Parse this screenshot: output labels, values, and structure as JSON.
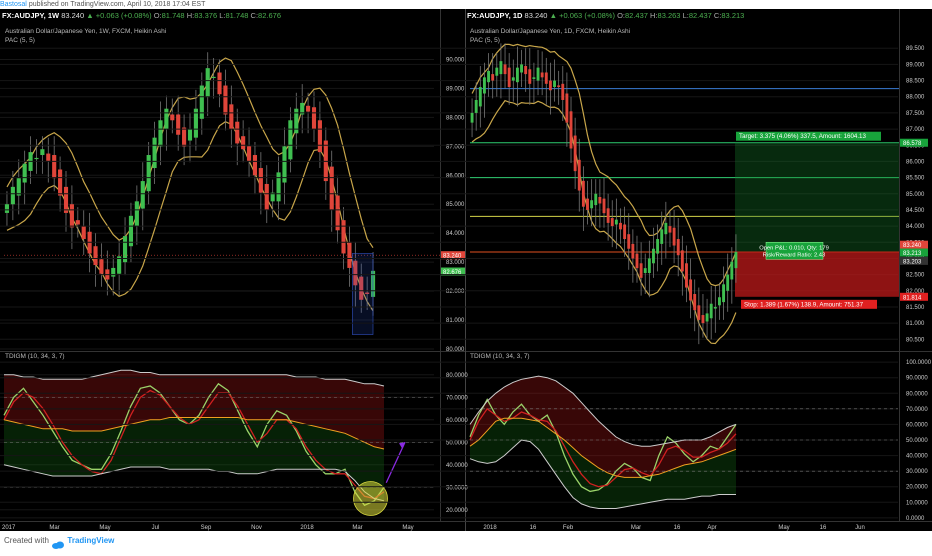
{
  "topbar": {
    "author": "Bastosal",
    "text": "published on TradingView.com, April 10, 2018 17:04 EST"
  },
  "footer": {
    "created": "Created with",
    "brand": "TradingView"
  },
  "left": {
    "header": {
      "symbol": "FX:AUDJPY, 1W",
      "last": "83.240",
      "change": "▲ +0.063 (+0.08%)",
      "o_label": "O:",
      "o": "81.748",
      "h_label": "H:",
      "h": "83.376",
      "l_label": "L:",
      "l": "81.748",
      "c_label": "C:",
      "c": "82.676"
    },
    "title": "Australian Dollar/Japanese Yen, 1W, FXCM, Heikin Ashi",
    "pac_label": "PAC (5, 5)",
    "osc_label": "TDIGM (10, 34, 3, 7)"
  },
  "right": {
    "header": {
      "symbol": "FX:AUDJPY, 1D",
      "last": "83.240",
      "change": "▲ +0.063 (+0.08%)",
      "o_label": "O:",
      "o": "82.437",
      "h_label": "H:",
      "h": "83.263",
      "l_label": "L:",
      "l": "82.437",
      "c_label": "C:",
      "c": "83.213"
    },
    "title": "Australian Dollar/Japanese Yen, 1D, FXCM, Heikin Ashi",
    "pac_label": "PAC (5, 5)",
    "osc_label": "TDIGM (10, 34, 3, 7)",
    "target_text": "Target: 3.375 (4.06%) 337.5, Amount: 1604.13",
    "stop_text": "Stop: 1.389 (1.67%) 138.9, Amount: 751.37",
    "pnl_line1": "Open P&L: 0.010, Qty: 179",
    "pnl_line2": "Risk/Reward Ratio: 2.43"
  },
  "chart_data": [
    {
      "type": "candlestick",
      "panel": "left-price",
      "x_ticks": [
        "2017",
        "Mar",
        "May",
        "Jul",
        "Sep",
        "Nov",
        "2018",
        "Mar",
        "May"
      ],
      "y_ticks": [
        "90.000",
        "89.000",
        "88.000",
        "87.000",
        "86.000",
        "85.000",
        "84.000",
        "83.000",
        "82.000",
        "81.000",
        "80.000"
      ],
      "ylim": [
        80.0,
        90.5
      ],
      "price_labels": {
        "last": "83.240",
        "close": "82.676"
      },
      "series_close": [
        85.0,
        85.6,
        85.9,
        86.4,
        86.8,
        86.6,
        86.9,
        86.5,
        85.9,
        85.3,
        84.7,
        84.2,
        84.3,
        83.8,
        83.3,
        82.9,
        82.6,
        82.4,
        82.8,
        83.2,
        83.9,
        84.6,
        85.1,
        85.8,
        86.7,
        87.3,
        87.9,
        88.3,
        87.9,
        87.4,
        87.0,
        87.6,
        88.3,
        89.1,
        89.7,
        89.4,
        88.8,
        88.1,
        87.6,
        87.1,
        86.9,
        86.5,
        86.0,
        85.4,
        84.8,
        85.4,
        86.1,
        87.0,
        87.9,
        88.3,
        88.5,
        88.2,
        87.6,
        86.8,
        85.8,
        84.8,
        84.1,
        83.3,
        82.8,
        82.2,
        81.7,
        81.9,
        82.7
      ]
    },
    {
      "type": "line",
      "panel": "left-oscillator",
      "y_ticks": [
        "80.0000",
        "70.0000",
        "60.0000",
        "50.0000",
        "40.0000",
        "30.0000",
        "20.0000"
      ],
      "ylim": [
        15,
        87
      ],
      "series": [
        {
          "values": [
            62,
            70,
            74,
            68,
            62,
            55,
            48,
            42,
            40,
            38,
            38,
            45,
            55,
            66,
            74,
            75,
            72,
            66,
            60,
            58,
            62,
            70,
            76,
            73,
            64,
            55,
            48,
            58,
            64,
            62,
            55,
            46,
            40,
            36,
            36,
            38,
            28,
            22,
            24,
            30
          ]
        },
        {
          "values": [
            60,
            68,
            72,
            70,
            65,
            58,
            50,
            44,
            40,
            37,
            36,
            42,
            52,
            62,
            70,
            73,
            71,
            66,
            61,
            58,
            60,
            66,
            72,
            72,
            66,
            58,
            50,
            54,
            60,
            60,
            56,
            48,
            42,
            38,
            36,
            36,
            31,
            26,
            25,
            28
          ]
        },
        {
          "values": [
            60,
            59,
            58,
            57,
            56,
            56,
            56,
            55,
            55,
            55,
            55,
            56,
            57,
            58,
            59,
            60,
            60,
            61,
            61,
            61,
            61,
            61,
            61,
            61,
            61,
            60,
            60,
            60,
            60,
            60,
            59,
            58,
            57,
            56,
            55,
            54,
            52,
            50,
            48,
            47
          ]
        },
        {
          "values": [
            80,
            80,
            79,
            79,
            78,
            78,
            78,
            78,
            78,
            79,
            80,
            81,
            82,
            82,
            81,
            81,
            80,
            80,
            80,
            80,
            80,
            80,
            80,
            80,
            80,
            80,
            80,
            80,
            80,
            80,
            79,
            79,
            79,
            78,
            78,
            78,
            77,
            76,
            76,
            75
          ]
        },
        {
          "values": [
            40,
            39,
            38,
            37,
            36,
            35,
            35,
            35,
            35,
            35,
            36,
            37,
            38,
            39,
            39,
            39,
            39,
            38,
            38,
            38,
            38,
            38,
            37,
            37,
            36,
            36,
            36,
            37,
            38,
            38,
            38,
            38,
            38,
            38,
            38,
            37,
            33,
            28,
            25,
            24
          ]
        }
      ]
    },
    {
      "type": "candlestick",
      "panel": "right-price",
      "x_ticks": [
        "2018",
        "16",
        "Feb",
        "Mar",
        "16",
        "Apr",
        "May",
        "16",
        "Jun"
      ],
      "y_ticks": [
        "89.500",
        "89.000",
        "88.500",
        "88.000",
        "87.500",
        "87.000",
        "86.500",
        "86.000",
        "85.500",
        "85.000",
        "84.500",
        "84.000",
        "83.500",
        "83.000",
        "82.500",
        "82.000",
        "81.500",
        "81.000",
        "80.500"
      ],
      "ylim": [
        80.2,
        89.6
      ],
      "price_labels": {
        "target": "86.578",
        "last": "83.240",
        "entry": "83.213",
        "close": "83.203",
        "stop": "81.814"
      },
      "series_close": [
        87.5,
        87.9,
        88.3,
        88.6,
        88.8,
        88.5,
        88.9,
        89.1,
        88.7,
        88.3,
        88.6,
        88.9,
        89.0,
        88.7,
        88.4,
        88.6,
        88.9,
        88.6,
        88.4,
        88.2,
        88.5,
        88.3,
        87.9,
        87.2,
        86.4,
        85.7,
        85.1,
        84.6,
        84.5,
        84.8,
        85.0,
        84.7,
        84.4,
        84.1,
        84.0,
        84.2,
        83.9,
        83.6,
        83.3,
        83.0,
        82.7,
        82.4,
        82.7,
        83.0,
        83.3,
        83.6,
        83.9,
        84.1,
        83.8,
        83.4,
        83.1,
        82.6,
        82.1,
        81.7,
        81.4,
        81.1,
        81.0,
        81.3,
        81.6,
        81.5,
        81.8,
        82.2,
        82.5,
        82.9,
        83.2
      ]
    },
    {
      "type": "line",
      "panel": "right-oscillator",
      "y_ticks": [
        "100.0000",
        "90.0000",
        "80.0000",
        "70.0000",
        "60.0000",
        "50.0000",
        "40.0000",
        "30.0000",
        "20.0000",
        "10.0000",
        "0.0000"
      ],
      "ylim": [
        -2,
        102
      ],
      "series": [
        {
          "values": [
            52,
            66,
            76,
            66,
            60,
            68,
            73,
            66,
            62,
            66,
            55,
            40,
            28,
            20,
            17,
            18,
            22,
            30,
            35,
            32,
            26,
            24,
            40,
            52,
            48,
            41,
            36,
            40,
            46,
            44,
            52,
            60
          ]
        },
        {
          "values": [
            50,
            62,
            70,
            66,
            62,
            64,
            68,
            66,
            63,
            62,
            56,
            46,
            36,
            28,
            22,
            20,
            21,
            26,
            31,
            32,
            29,
            27,
            34,
            44,
            46,
            43,
            39,
            39,
            42,
            44,
            48,
            54
          ]
        },
        {
          "values": [
            46,
            50,
            56,
            62,
            64,
            64,
            64,
            63,
            62,
            58,
            54,
            50,
            45,
            40,
            36,
            32,
            29,
            27,
            26,
            26,
            26,
            27,
            28,
            30,
            32,
            34,
            35,
            36,
            38,
            40,
            42,
            44
          ]
        },
        {
          "values": [
            60,
            68,
            75,
            80,
            84,
            87,
            89,
            90,
            91,
            90,
            88,
            84,
            80,
            74,
            68,
            62,
            57,
            52,
            49,
            47,
            46,
            46,
            47,
            48,
            49,
            50,
            50,
            50,
            52,
            55,
            58,
            60
          ]
        },
        {
          "values": [
            38,
            36,
            35,
            36,
            40,
            45,
            50,
            49,
            44,
            36,
            28,
            20,
            13,
            9,
            7,
            6,
            6,
            6,
            7,
            8,
            9,
            10,
            11,
            12,
            12,
            12,
            13,
            14,
            14,
            15,
            15,
            15
          ]
        }
      ]
    }
  ]
}
